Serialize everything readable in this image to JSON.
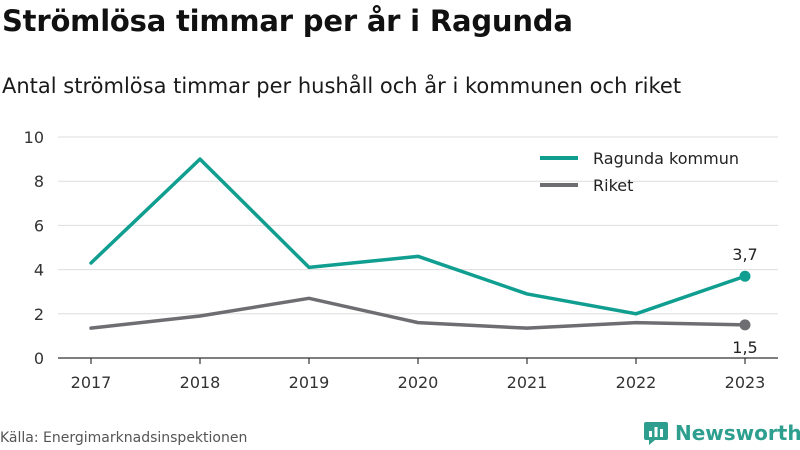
{
  "title": "Strömlösa timmar per år i Ragunda",
  "subtitle": "Antal strömlösa timmar per hushåll och år i kommunen och riket",
  "source": "Källa: Energimarknadsinspektionen",
  "brand": {
    "name": "Newsworthy",
    "color": "#2e9f8e",
    "icon": "newsworthy-logo-icon"
  },
  "chart_data": {
    "type": "line",
    "title": "Strömlösa timmar per år i Ragunda",
    "subtitle": "Antal strömlösa timmar per hushåll och år i kommunen och riket",
    "x": [
      "2017",
      "2018",
      "2019",
      "2020",
      "2021",
      "2022",
      "2023"
    ],
    "ylim": [
      0,
      10
    ],
    "yticks": [
      0,
      2,
      4,
      6,
      8,
      10
    ],
    "grid": true,
    "legend": "top-right",
    "series": [
      {
        "name": "Ragunda kommun",
        "color": "#0f9e8f",
        "values": [
          4.3,
          9.0,
          4.1,
          4.6,
          2.9,
          2.0,
          3.7
        ],
        "end_label": "3,7"
      },
      {
        "name": "Riket",
        "color": "#6e6d72",
        "values": [
          1.35,
          1.9,
          2.7,
          1.6,
          1.35,
          1.6,
          1.5
        ],
        "end_label": "1,5"
      }
    ]
  }
}
